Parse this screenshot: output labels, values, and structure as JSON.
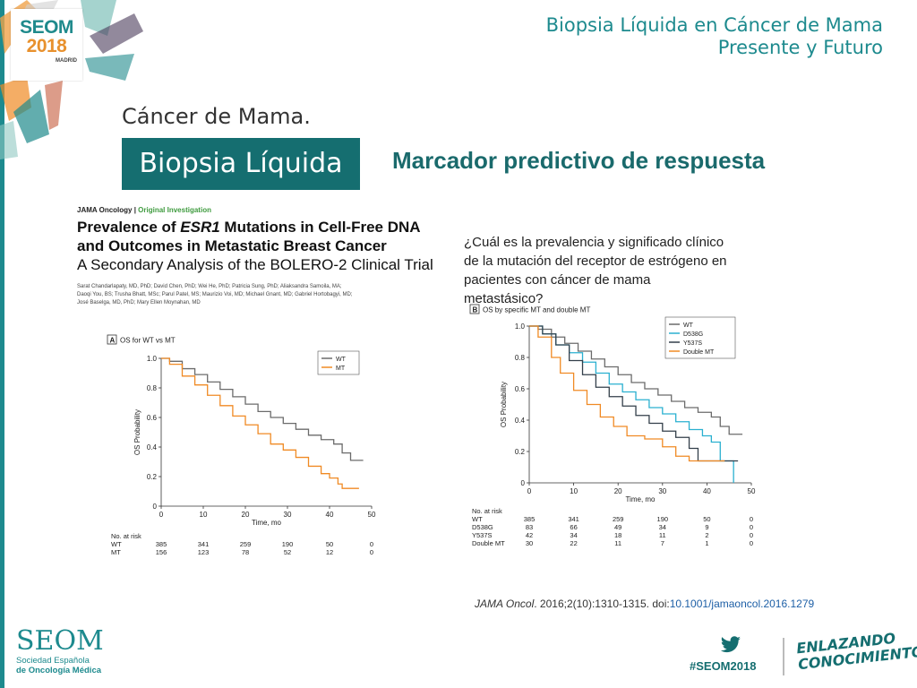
{
  "header": {
    "line1": "Biopsia Líquida en Cáncer de Mama",
    "line2": "Presente y Futuro"
  },
  "logo": {
    "seom": "SEOM",
    "year": "2018",
    "city": "MADRID"
  },
  "subtitle": "Cáncer de Mama.",
  "badge": "Biopsia Líquida",
  "marker": "Marcador predictivo de respuesta",
  "paper": {
    "journal": "JAMA Oncology",
    "section": "Original Investigation",
    "title_line1_pre": "Prevalence of ",
    "title_line1_gene": "ESR1",
    "title_line1_post": " Mutations in Cell-Free DNA",
    "title_line2": "and Outcomes in Metastatic Breast Cancer",
    "title_line3": "A Secondary Analysis of the BOLERO-2 Clinical Trial",
    "authors_line1": "Sarat Chandarlapaty, MD, PhD; David Chen, PhD; Wei He, PhD; Patricia Sung, PhD; Aliaksandra Samoila, MA;",
    "authors_line2": "Daoqi You, BS; Trusha Bhatt, MSc; Parul Patel, MS; Maurizio Voi, MD; Michael Gnant, MD; Gabriel Hortobagyi, MD;",
    "authors_line3": "José Baselga, MD, PhD; Mary Ellen Moynahan, MD"
  },
  "question": "¿Cuál es la prevalencia y significado clínico de la mutación del receptor de estrógeno en pacientes con cáncer de mama metastásico?",
  "colors": {
    "teal": "#1d8a8e",
    "wt": "#6b6b6b",
    "mt": "#f08a24",
    "d538g": "#2ab0d0",
    "y537s": "#333f4a",
    "double": "#f08a24"
  },
  "chart_data": [
    {
      "type": "line",
      "panel": "A",
      "title": "OS for WT vs MT",
      "xlabel": "Time, mo",
      "ylabel": "OS Probability",
      "xlim": [
        0,
        50
      ],
      "ylim": [
        0,
        1.0
      ],
      "xticks": [
        "0",
        "10",
        "20",
        "30",
        "40",
        "50"
      ],
      "yticks": [
        "0",
        "0.2",
        "0.4",
        "0.6",
        "0.8",
        "1.0"
      ],
      "legend_position": "top-right",
      "series": [
        {
          "name": "WT",
          "color": "#6b6b6b",
          "x": [
            0,
            2,
            5,
            8,
            11,
            14,
            17,
            20,
            23,
            26,
            29,
            32,
            35,
            38,
            41,
            43,
            45,
            48
          ],
          "y": [
            1.0,
            0.98,
            0.93,
            0.89,
            0.84,
            0.79,
            0.74,
            0.69,
            0.64,
            0.6,
            0.56,
            0.52,
            0.48,
            0.45,
            0.42,
            0.36,
            0.31,
            0.31
          ]
        },
        {
          "name": "MT",
          "color": "#f08a24",
          "x": [
            0,
            2,
            5,
            8,
            11,
            14,
            17,
            20,
            23,
            26,
            29,
            32,
            35,
            38,
            40,
            42,
            43,
            46,
            47
          ],
          "y": [
            1.0,
            0.96,
            0.88,
            0.82,
            0.75,
            0.68,
            0.61,
            0.55,
            0.49,
            0.42,
            0.38,
            0.33,
            0.27,
            0.22,
            0.19,
            0.15,
            0.12,
            0.12,
            0.12
          ]
        }
      ],
      "risk_table": {
        "heading": "No. at risk",
        "rows": [
          {
            "label": "WT",
            "values": [
              "385",
              "341",
              "259",
              "190",
              "50",
              "0"
            ]
          },
          {
            "label": "MT",
            "values": [
              "156",
              "123",
              "78",
              "52",
              "12",
              "0"
            ]
          }
        ]
      }
    },
    {
      "type": "line",
      "panel": "B",
      "title": "OS by specific MT and double MT",
      "xlabel": "Time, mo",
      "ylabel": "OS Probability",
      "xlim": [
        0,
        50
      ],
      "ylim": [
        0,
        1.0
      ],
      "xticks": [
        "0",
        "10",
        "20",
        "30",
        "40",
        "50"
      ],
      "yticks": [
        "0",
        "0.2",
        "0.4",
        "0.6",
        "0.8",
        "1.0"
      ],
      "legend_position": "top-right",
      "series": [
        {
          "name": "WT",
          "color": "#6b6b6b",
          "x": [
            0,
            2,
            5,
            8,
            11,
            14,
            17,
            20,
            23,
            26,
            29,
            32,
            35,
            38,
            41,
            43,
            45,
            48
          ],
          "y": [
            1.0,
            0.98,
            0.93,
            0.89,
            0.84,
            0.79,
            0.74,
            0.69,
            0.64,
            0.6,
            0.56,
            0.52,
            0.48,
            0.45,
            0.42,
            0.36,
            0.31,
            0.31
          ]
        },
        {
          "name": "D538G",
          "color": "#2ab0d0",
          "x": [
            0,
            3,
            6,
            9,
            12,
            15,
            18,
            21,
            24,
            27,
            30,
            33,
            36,
            39,
            41,
            43,
            45,
            46
          ],
          "y": [
            1.0,
            0.95,
            0.88,
            0.83,
            0.77,
            0.7,
            0.63,
            0.58,
            0.53,
            0.48,
            0.44,
            0.39,
            0.34,
            0.3,
            0.26,
            0.14,
            0.14,
            0.0
          ]
        },
        {
          "name": "Y537S",
          "color": "#333f4a",
          "x": [
            0,
            3,
            6,
            9,
            12,
            15,
            18,
            21,
            24,
            27,
            30,
            33,
            36,
            38,
            41,
            45,
            47
          ],
          "y": [
            1.0,
            0.95,
            0.88,
            0.78,
            0.69,
            0.61,
            0.55,
            0.49,
            0.43,
            0.38,
            0.33,
            0.29,
            0.22,
            0.14,
            0.14,
            0.14,
            0.14
          ]
        },
        {
          "name": "Double MT",
          "color": "#f08a24",
          "x": [
            0,
            2,
            5,
            7,
            10,
            13,
            16,
            19,
            22,
            26,
            30,
            33,
            36,
            38,
            41,
            44
          ],
          "y": [
            1.0,
            0.93,
            0.8,
            0.7,
            0.59,
            0.5,
            0.42,
            0.36,
            0.3,
            0.28,
            0.23,
            0.17,
            0.14,
            0.14,
            0.14,
            0.14
          ]
        }
      ],
      "risk_table": {
        "heading": "No. at risk",
        "rows": [
          {
            "label": "WT",
            "values": [
              "385",
              "341",
              "259",
              "190",
              "50",
              "0"
            ]
          },
          {
            "label": "D538G",
            "values": [
              "83",
              "66",
              "49",
              "34",
              "9",
              "0"
            ]
          },
          {
            "label": "Y537S",
            "values": [
              "42",
              "34",
              "18",
              "11",
              "2",
              "0"
            ]
          },
          {
            "label": "Double MT",
            "values": [
              "30",
              "22",
              "11",
              "7",
              "1",
              "0"
            ]
          }
        ]
      }
    }
  ],
  "citation": {
    "journal": "JAMA Oncol",
    "ref": ". 2016;2(10):1310-1315. doi:",
    "doi": "10.1001/jamaoncol.2016.1279"
  },
  "footer": {
    "seom": "SEOM",
    "sociedad": "Sociedad Española",
    "oncologia": "de Oncología Médica",
    "hashtag": "#SEOM2018",
    "slogan1": "ENLAZANDO",
    "slogan2": "CONOCIMIENTO"
  }
}
